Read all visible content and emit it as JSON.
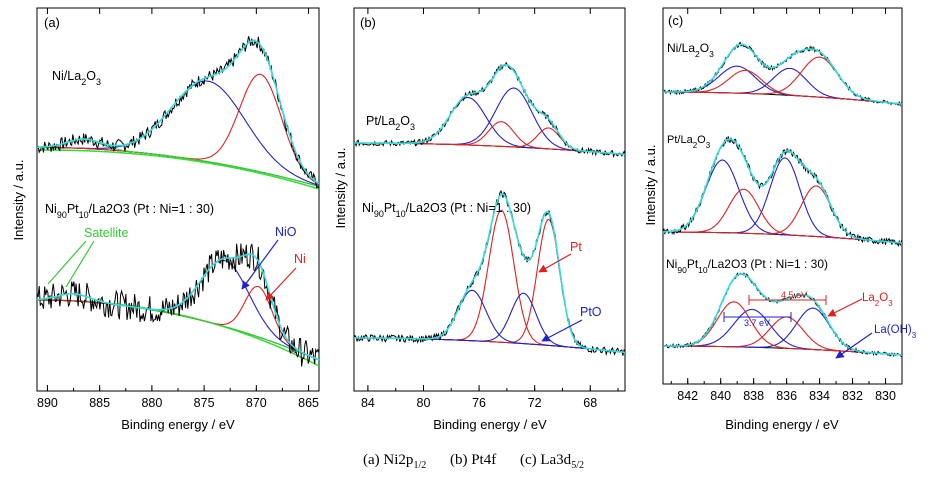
{
  "figure": {
    "caption": [
      {
        "label": "(a) Ni2p",
        "sub": "1/2"
      },
      {
        "label": "(b) Pt4f",
        "sub": ""
      },
      {
        "label": "(c) La3d",
        "sub": "5/2"
      }
    ]
  },
  "chart_data": [
    {
      "type": "line",
      "panel_label": "(a)",
      "xlabel": "Binding energy / eV",
      "ylabel": "Intensity / a.u.",
      "x_reversed": true,
      "xlim": [
        891,
        864
      ],
      "xticks": [
        890,
        885,
        880,
        875,
        870,
        865
      ],
      "yticks": [],
      "spectra": [
        {
          "sample_label": {
            "pre": "Ni/La",
            "sub1": "2",
            "post": "O",
            "sub2": "3",
            "tail": ""
          },
          "peaks": [
            {
              "center": 874.6,
              "height": 0.62,
              "width": 3.5,
              "color": "#2222cc"
            },
            {
              "center": 869.6,
              "height": 0.75,
              "width": 2.0,
              "color": "#dd2222"
            },
            {
              "center": 886.5,
              "height": 0.07,
              "width": 1.6,
              "color": "#33cc33"
            }
          ],
          "baseline": {
            "y_start": 0.02,
            "y_end": -0.28
          },
          "background": {
            "y_start": 0.0,
            "y_end": -0.3,
            "color": "#33dd33"
          },
          "fit_color": "#33dddd",
          "noise": 0.05
        },
        {
          "sample_label": {
            "pre": "Ni",
            "sub1": "90",
            "post": "Pt",
            "sub2": "10",
            "tail": "/La2O3 (Pt : Ni=1 : 30)"
          },
          "peaks": [
            {
              "center": 873.0,
              "height": 0.55,
              "width": 2.3,
              "color": "#2222cc"
            },
            {
              "center": 869.8,
              "height": 0.42,
              "width": 1.3,
              "color": "#dd2222"
            },
            {
              "center": 887.5,
              "height": 0.06,
              "width": 1.5,
              "color": "#33cc33"
            }
          ],
          "baseline": {
            "y_start": 0.0,
            "y_end": -0.5
          },
          "background": {
            "y_start": 0.0,
            "y_end": -0.55,
            "color": "#33dd33"
          },
          "fit_color": "#33dddd",
          "noise": 0.12
        }
      ],
      "annotations": [
        {
          "text": "Satellite",
          "color": "#33cc33"
        },
        {
          "text": "NiO",
          "color": "#2222cc"
        },
        {
          "text": "Ni",
          "color": "#dd2222"
        }
      ]
    },
    {
      "type": "line",
      "panel_label": "(b)",
      "xlabel": "Binding energy / eV",
      "ylabel": "Intensity / a.u.",
      "x_reversed": true,
      "xlim": [
        85,
        65.5
      ],
      "xticks": [
        84,
        80,
        76,
        72,
        68
      ],
      "yticks": [],
      "spectra": [
        {
          "sample_label": {
            "pre": "Pt/La",
            "sub1": "2",
            "post": "O",
            "sub2": "3",
            "tail": ""
          },
          "peaks": [
            {
              "center": 76.8,
              "height": 0.5,
              "width": 1.3,
              "color": "#2222cc"
            },
            {
              "center": 73.5,
              "height": 0.62,
              "width": 1.3,
              "color": "#2222cc"
            },
            {
              "center": 74.4,
              "height": 0.26,
              "width": 0.9,
              "color": "#dd2222"
            },
            {
              "center": 71.0,
              "height": 0.22,
              "width": 0.8,
              "color": "#dd2222"
            }
          ],
          "baseline": {
            "y_start": 0.0,
            "y_end": -0.12
          },
          "fit_color": "#33dddd",
          "noise": 0.03
        },
        {
          "sample_label": {
            "pre": "Ni",
            "sub1": "90",
            "post": "Pt",
            "sub2": "10",
            "tail": "/La2O3 (Pt : Ni=1 : 30)"
          },
          "peaks": [
            {
              "center": 74.4,
              "height": 1.1,
              "width": 0.9,
              "color": "#dd2222"
            },
            {
              "center": 71.0,
              "height": 1.05,
              "width": 0.8,
              "color": "#dd2222"
            },
            {
              "center": 76.5,
              "height": 0.42,
              "width": 1.0,
              "color": "#2222cc"
            },
            {
              "center": 72.8,
              "height": 0.42,
              "width": 0.9,
              "color": "#2222cc"
            }
          ],
          "baseline": {
            "y_start": 0.0,
            "y_end": -0.12
          },
          "fit_color": "#33dddd",
          "noise": 0.03
        }
      ],
      "annotations": [
        {
          "text": "Pt",
          "color": "#dd2222"
        },
        {
          "text": "PtO",
          "color": "#2222cc"
        }
      ]
    },
    {
      "type": "line",
      "panel_label": "(c)",
      "xlabel": "Binding energy / eV",
      "ylabel": "Intensity / a.u.",
      "x_reversed": true,
      "xlim": [
        843.5,
        829
      ],
      "xticks": [
        842,
        840,
        838,
        836,
        834,
        832,
        830
      ],
      "yticks": [],
      "spectra": [
        {
          "sample_label": {
            "pre": "Ni/La",
            "sub1": "2",
            "post": "O",
            "sub2": "3",
            "tail": ""
          },
          "peaks": [
            {
              "center": 839.0,
              "height": 0.27,
              "width": 1.1,
              "color": "#2222cc"
            },
            {
              "center": 835.8,
              "height": 0.27,
              "width": 1.0,
              "color": "#2222cc"
            },
            {
              "center": 838.5,
              "height": 0.23,
              "width": 1.0,
              "color": "#dd2222"
            },
            {
              "center": 834.0,
              "height": 0.4,
              "width": 1.1,
              "color": "#dd2222"
            }
          ],
          "baseline": {
            "y_start": 0.0,
            "y_end": -0.12
          },
          "fit_color": "#33dddd",
          "noise": 0.02
        },
        {
          "sample_label": {
            "pre": "Pt/La",
            "sub1": "2",
            "post": "O",
            "sub2": "3",
            "tail": ""
          },
          "peaks": [
            {
              "center": 839.9,
              "height": 0.66,
              "width": 1.0,
              "color": "#2222cc"
            },
            {
              "center": 836.1,
              "height": 0.7,
              "width": 0.9,
              "color": "#2222cc"
            },
            {
              "center": 838.6,
              "height": 0.4,
              "width": 0.9,
              "color": "#dd2222"
            },
            {
              "center": 834.2,
              "height": 0.46,
              "width": 0.9,
              "color": "#dd2222"
            }
          ],
          "baseline": {
            "y_start": 0.0,
            "y_end": -0.1
          },
          "fit_color": "#33dddd",
          "noise": 0.03
        },
        {
          "sample_label": {
            "pre": "Ni",
            "sub1": "90",
            "post": "Pt",
            "sub2": "10",
            "tail": "/La2O3 (Pt : Ni=1 : 30)"
          },
          "peaks": [
            {
              "center": 838.1,
              "height": 0.42,
              "width": 1.1,
              "color": "#2222cc"
            },
            {
              "center": 834.4,
              "height": 0.46,
              "width": 1.0,
              "color": "#2222cc"
            },
            {
              "center": 839.2,
              "height": 0.5,
              "width": 1.0,
              "color": "#dd2222"
            },
            {
              "center": 836.0,
              "height": 0.35,
              "width": 1.0,
              "color": "#dd2222"
            }
          ],
          "baseline": {
            "y_start": 0.0,
            "y_end": -0.1
          },
          "fit_color": "#33dddd",
          "noise": 0.02
        }
      ],
      "annotations": [
        {
          "text": "La2O3",
          "color": "#dd2222"
        },
        {
          "text": "La(OH)3",
          "color": "#2222cc"
        },
        {
          "text": "3.7 eV",
          "color": "#2222cc"
        },
        {
          "text": "4.5 eV",
          "color": "#dd2222"
        }
      ]
    }
  ]
}
